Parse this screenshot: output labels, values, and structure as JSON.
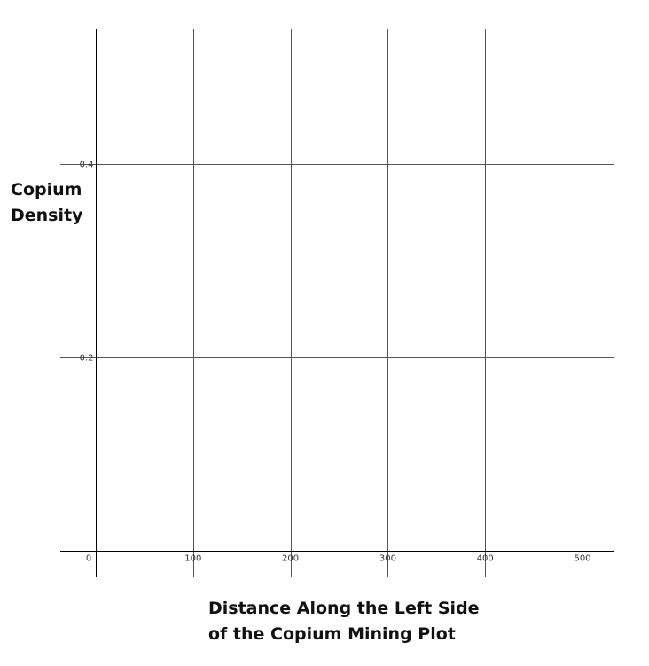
{
  "chart_data": {
    "type": "scatter",
    "title": "",
    "xlabel_lines": [
      "Distance Along the Left Side",
      "of the Copium Mining Plot"
    ],
    "ylabel_lines": [
      "Copium",
      "Density"
    ],
    "x_ticks": [
      0,
      100,
      200,
      300,
      400,
      500
    ],
    "y_ticks": [
      0.2,
      0.4
    ],
    "xlim": [
      0,
      530
    ],
    "ylim": [
      0,
      0.5
    ],
    "grid": true,
    "series": []
  },
  "colors": {
    "grid": "#555555",
    "axis": "#000000",
    "tick_text": "#333333",
    "label_text": "#111111"
  }
}
